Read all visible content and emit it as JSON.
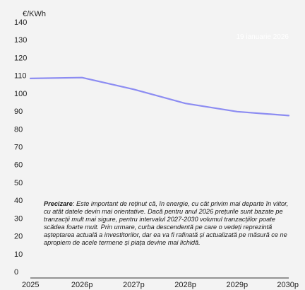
{
  "chart_data": {
    "type": "line",
    "unit_label": "€/KWh",
    "x": [
      "2025",
      "2026p",
      "2027p",
      "2028p",
      "2029p",
      "2030p"
    ],
    "series": [
      {
        "values": [
          108.3,
          108.8,
          102.2,
          94.3,
          89.7,
          87.5
        ],
        "color": "#8c8cf2"
      }
    ],
    "yticks": [
      0,
      10,
      20,
      30,
      40,
      50,
      60,
      70,
      80,
      90,
      100,
      110,
      120,
      130,
      140
    ],
    "ylim": [
      0,
      140
    ],
    "grid": false,
    "date_stamp": "19 ianuarie 2026",
    "note": {
      "label": "Precizare",
      "text": ": Este important de reținut că, în energie, cu cât privim mai departe în viitor, cu atât datele devin mai orientative. Dacă pentru anul 2026 prețurile sunt bazate pe tranzacții mult mai sigure, pentru intervalul 2027-2030 volumul tranzacțiilor poate scădea foarte mult. Prin urmare, curba descendentă pe care o vedeți reprezintă așteptarea actuală a investitorilor, dar ea va fi rafinată și actualizată pe măsură ce ne apropiem de acele termene și piața devine mai lichidă."
    }
  }
}
